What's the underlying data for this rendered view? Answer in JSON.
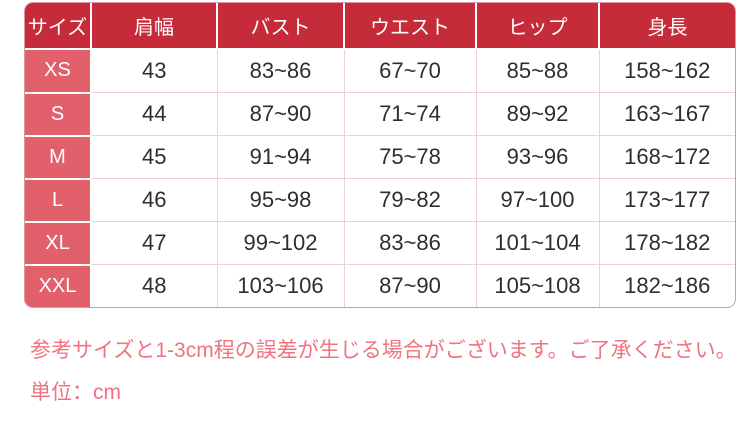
{
  "colors": {
    "header_bg": "#c52b39",
    "row_label_bg": "#e2606b",
    "header_text": "#ffffff",
    "cell_text": "#2e2e2e",
    "grid_border": "#ecd3d3",
    "outer_border": "#dc969c",
    "note_text": "#f0737f"
  },
  "size_table": {
    "columns": [
      "サイズ",
      "肩幅",
      "バスト",
      "ウエスト",
      "ヒップ",
      "身長"
    ],
    "rows": [
      {
        "size": "XS",
        "values": [
          "43",
          "83~86",
          "67~70",
          "85~88",
          "158~162"
        ]
      },
      {
        "size": "S",
        "values": [
          "44",
          "87~90",
          "71~74",
          "89~92",
          "163~167"
        ]
      },
      {
        "size": "M",
        "values": [
          "45",
          "91~94",
          "75~78",
          "93~96",
          "168~172"
        ]
      },
      {
        "size": "L",
        "values": [
          "46",
          "95~98",
          "79~82",
          "97~100",
          "173~177"
        ]
      },
      {
        "size": "XL",
        "values": [
          "47",
          "99~102",
          "83~86",
          "101~104",
          "178~182"
        ]
      },
      {
        "size": "XXL",
        "values": [
          "48",
          "103~106",
          "87~90",
          "105~108",
          "182~186"
        ]
      }
    ]
  },
  "notes": {
    "line1": "参考サイズと1-3cm程の誤差が生じる場合がございます。ご了承ください。",
    "line2": "単位：cm"
  }
}
